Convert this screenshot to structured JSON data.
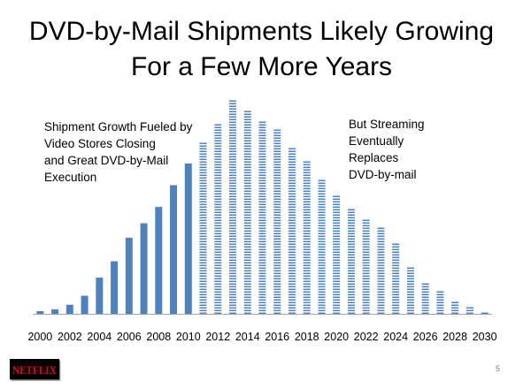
{
  "title_lines": [
    "DVD-by-Mail Shipments Likely Growing",
    "For a Few More Years"
  ],
  "annotations": {
    "left": [
      "Shipment Growth Fueled by",
      "Video Stores Closing",
      "and Great DVD-by-Mail",
      "Execution"
    ],
    "right": [
      "But Streaming",
      "Eventually",
      "Replaces",
      "DVD-by-mail"
    ]
  },
  "logo": {
    "text": "NETFLIX",
    "color": "#e50914"
  },
  "page_number": "5",
  "colors": {
    "actual": "#4f81bd",
    "projected": "#4f81bd",
    "axis": "#a6a6a6"
  },
  "chart_data": {
    "type": "bar",
    "title": "",
    "xlabel": "",
    "ylabel": "",
    "categories": [
      "2000",
      "2001",
      "2002",
      "2003",
      "2004",
      "2005",
      "2006",
      "2007",
      "2008",
      "2009",
      "2010",
      "2011",
      "2012",
      "2013",
      "2014",
      "2015",
      "2016",
      "2017",
      "2018",
      "2019",
      "2020",
      "2021",
      "2022",
      "2023",
      "2024",
      "2025",
      "2026",
      "2027",
      "2028",
      "2029",
      "2030"
    ],
    "x_tick_labels": [
      "2000",
      "2002",
      "2004",
      "2006",
      "2008",
      "2010",
      "2012",
      "2014",
      "2016",
      "2018",
      "2020",
      "2022",
      "2024",
      "2026",
      "2028",
      "2030"
    ],
    "series": [
      {
        "style": "solid",
        "values": [
          1.5,
          2.5,
          5,
          10,
          20,
          29,
          42,
          50,
          59,
          71,
          83,
          null,
          null,
          null,
          null,
          null,
          null,
          null,
          null,
          null,
          null,
          null,
          null,
          null,
          null,
          null,
          null,
          null,
          null,
          null,
          null
        ]
      },
      {
        "style": "dashed",
        "values": [
          null,
          null,
          null,
          null,
          null,
          null,
          null,
          null,
          null,
          null,
          null,
          95,
          106,
          119,
          113,
          107,
          102,
          92,
          85,
          75,
          66,
          58,
          53,
          48,
          39,
          26,
          18,
          13,
          8,
          4,
          1.5
        ]
      }
    ],
    "ylim": [
      0,
      120
    ],
    "grid": false,
    "legend": "none"
  }
}
